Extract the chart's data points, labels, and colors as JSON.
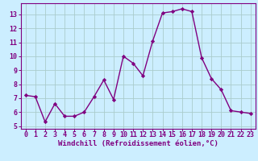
{
  "x": [
    0,
    1,
    2,
    3,
    4,
    5,
    6,
    7,
    8,
    9,
    10,
    11,
    12,
    13,
    14,
    15,
    16,
    17,
    18,
    19,
    20,
    21,
    22,
    23
  ],
  "y": [
    7.2,
    7.1,
    5.3,
    6.6,
    5.7,
    5.7,
    6.0,
    7.1,
    8.3,
    6.9,
    10.0,
    9.5,
    8.6,
    11.1,
    13.1,
    13.2,
    13.4,
    13.2,
    9.9,
    8.4,
    7.6,
    6.1,
    6.0,
    5.9
  ],
  "line_color": "#800080",
  "marker": "D",
  "marker_size": 2.2,
  "bg_color": "#cceeff",
  "grid_color": "#aacccc",
  "xlabel": "Windchill (Refroidissement éolien,°C)",
  "xlim": [
    -0.5,
    23.5
  ],
  "ylim": [
    4.8,
    13.8
  ],
  "yticks": [
    5,
    6,
    7,
    8,
    9,
    10,
    11,
    12,
    13
  ],
  "xticks": [
    0,
    1,
    2,
    3,
    4,
    5,
    6,
    7,
    8,
    9,
    10,
    11,
    12,
    13,
    14,
    15,
    16,
    17,
    18,
    19,
    20,
    21,
    22,
    23
  ],
  "tick_color": "#800080",
  "spine_color": "#800080",
  "line_width": 1.0,
  "xlabel_fontsize": 6.5,
  "tick_fontsize": 6.0
}
